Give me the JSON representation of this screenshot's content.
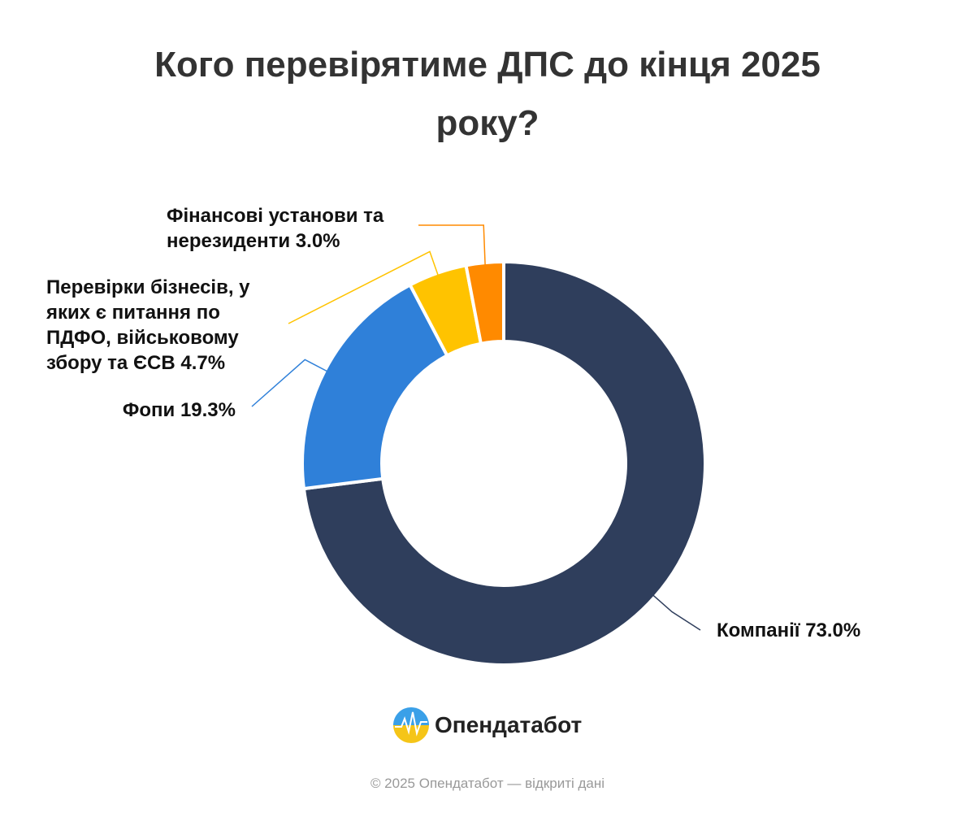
{
  "chart_data": {
    "type": "donut",
    "title": "Кого перевірятиме ДПС до кінця 2025 року?",
    "categories": [
      "Компанії",
      "Фопи",
      "Перевірки бізнесів, у яких є питання по ПДФО, військовому збору та ЄСВ",
      "Фінансові установи та нерезиденти"
    ],
    "values": [
      73.0,
      19.3,
      4.7,
      3.0
    ],
    "value_labels": [
      "73.0%",
      "19.3%",
      "4.7%",
      "3.0%"
    ],
    "colors": [
      "#2f3e5c",
      "#2f80d9",
      "#ffc300",
      "#ff8a00"
    ]
  },
  "branding": {
    "logo": "Опендатабот",
    "footer": "© 2025 Опендатабот — відкриті дані"
  }
}
